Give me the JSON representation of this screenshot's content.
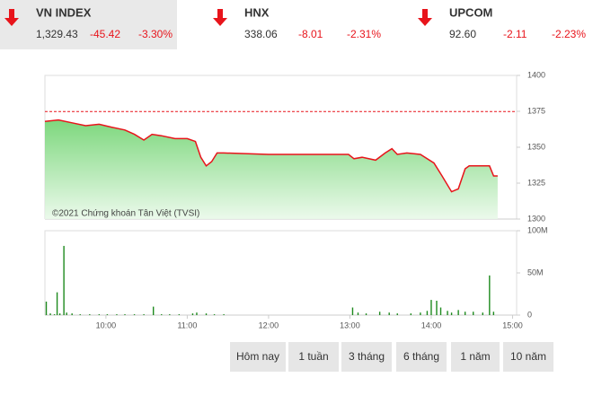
{
  "tickers": [
    {
      "name": "VN INDEX",
      "price": "1,329.43",
      "change": "-45.42",
      "percent": "-3.30%"
    },
    {
      "name": "HNX",
      "price": "338.06",
      "change": "-8.01",
      "percent": "-2.31%"
    },
    {
      "name": "UPCOM",
      "price": "92.60",
      "change": "-2.11",
      "percent": "-2.23%"
    }
  ],
  "chart_data": [
    {
      "type": "line",
      "annotation": "©2021 Chứng khoán Tân Việt (TVSI)",
      "color": "#e8141b",
      "reference": 1374.85,
      "x": [
        555,
        565,
        575,
        585,
        595,
        604,
        614,
        621,
        628,
        634,
        641,
        651,
        660,
        666,
        670,
        674,
        678,
        682,
        687,
        720,
        779,
        783,
        789,
        799,
        806,
        811,
        815,
        822,
        832,
        842,
        848,
        855,
        860,
        865,
        868,
        883,
        886,
        889
      ],
      "values": [
        1368,
        1369,
        1367,
        1365,
        1366,
        1364,
        1362,
        1359,
        1355,
        1359,
        1358,
        1356,
        1356,
        1354,
        1343,
        1337,
        1340,
        1346,
        1346,
        1345,
        1345,
        1342,
        1343,
        1341,
        1346,
        1349,
        1345,
        1346,
        1345,
        1339,
        1330,
        1319,
        1321,
        1335,
        1337,
        1337,
        1330,
        1330
      ],
      "xlim": [
        555,
        903
      ],
      "ylim": [
        1300,
        1400
      ],
      "yticks": [
        1300,
        1325,
        1350,
        1375,
        1400
      ]
    },
    {
      "type": "bar",
      "color": "#1e8a1e",
      "x": [
        556,
        559,
        562,
        564,
        566,
        569,
        571,
        575,
        581,
        588,
        595,
        601,
        608,
        614,
        621,
        628,
        635,
        641,
        647,
        654,
        664,
        667,
        674,
        680,
        687,
        782,
        786,
        792,
        802,
        809,
        815,
        825,
        832,
        837,
        840,
        844,
        847,
        852,
        855,
        860,
        865,
        871,
        878,
        883,
        886
      ],
      "values": [
        16,
        2,
        1,
        27,
        2,
        82,
        3,
        2,
        1,
        1,
        1,
        1,
        1,
        1,
        1,
        1,
        10,
        1,
        1,
        1,
        2,
        3,
        2,
        1,
        1,
        9,
        3,
        2,
        4,
        3,
        2,
        2,
        3,
        5,
        18,
        17,
        9,
        5,
        3,
        6,
        4,
        4,
        3,
        47,
        4
      ],
      "xlim": [
        555,
        903
      ],
      "ylim": [
        0,
        100
      ],
      "yticks": [
        0,
        {
          "value": 50,
          "label": "50M"
        },
        {
          "value": 100,
          "label": "100M"
        }
      ],
      "xticks": [
        {
          "value": 600,
          "label": "10:00"
        },
        {
          "value": 660,
          "label": "11:00"
        },
        {
          "value": 720,
          "label": "12:00"
        },
        {
          "value": 780,
          "label": "13:00"
        },
        {
          "value": 840,
          "label": "14:00"
        },
        {
          "value": 900,
          "label": "15:00"
        }
      ]
    }
  ],
  "buttons": [
    "Hôm nay",
    "1 tuần",
    "3 tháng",
    "6 tháng",
    "1 năm",
    "10 năm"
  ]
}
